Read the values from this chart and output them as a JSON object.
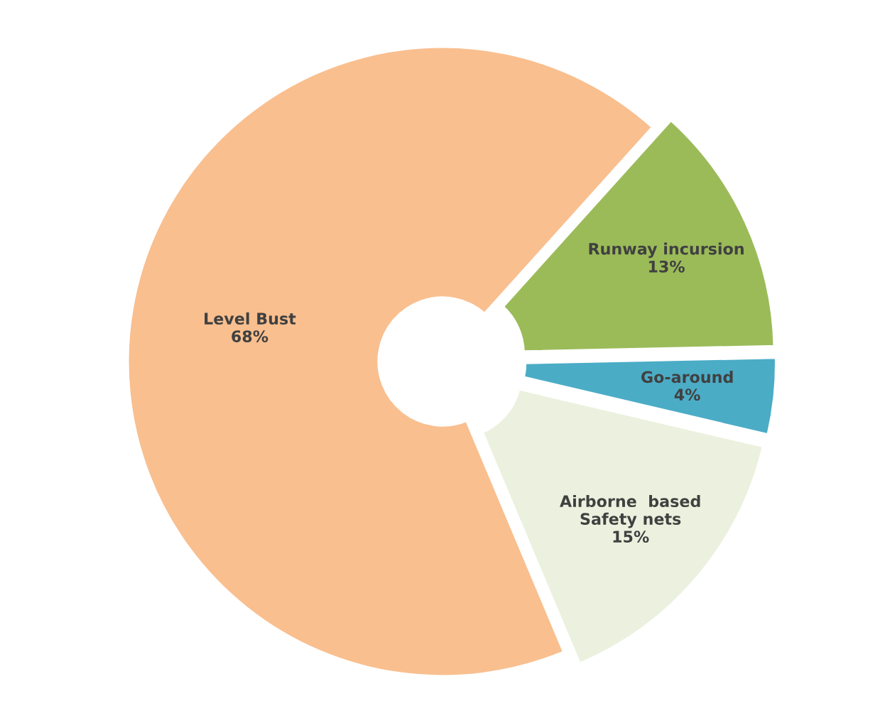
{
  "chart_data": {
    "type": "donut",
    "categories": [
      "Level Bust",
      "Runway incursion",
      "Go-around",
      "Airborne  based\nSafety nets"
    ],
    "values": [
      68,
      13,
      4,
      15
    ],
    "colors": [
      "#f9bf8f",
      "#9bbb59",
      "#4bacc6",
      "#ebf1de"
    ],
    "value_labels": [
      "68%",
      "13%",
      "4%",
      "15%"
    ],
    "legend": false
  }
}
